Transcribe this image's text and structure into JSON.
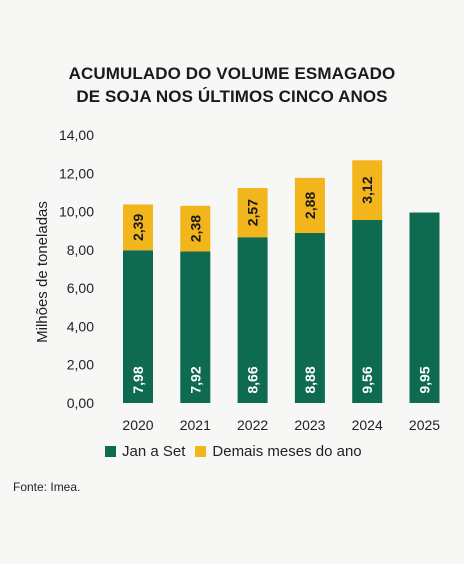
{
  "chart_data": {
    "type": "bar",
    "stacked": true,
    "title_lines": [
      "ACUMULADO DO VOLUME ESMAGADO",
      "DE SOJA NOS ÚLTIMOS CINCO ANOS"
    ],
    "ylabel": "Milhões de toneladas",
    "categories": [
      "2020",
      "2021",
      "2022",
      "2023",
      "2024",
      "2025"
    ],
    "ylim": [
      0,
      14
    ],
    "yticks": [
      "0,00",
      "2,00",
      "4,00",
      "6,00",
      "8,00",
      "10,00",
      "12,00",
      "14,00"
    ],
    "series": [
      {
        "name": "Jan a Set",
        "color": "#0e6b4f",
        "label_color": "#ffffff",
        "values": [
          7.98,
          7.92,
          8.66,
          8.88,
          9.56,
          9.95
        ],
        "labels": [
          "7,98",
          "7,92",
          "8,66",
          "8,88",
          "9,56",
          "9,95"
        ]
      },
      {
        "name": "Demais meses do ano",
        "color": "#f2b51c",
        "label_color": "#1a1a1a",
        "values": [
          2.39,
          2.38,
          2.57,
          2.88,
          3.12,
          null
        ],
        "labels": [
          "2,39",
          "2,38",
          "2,57",
          "2,88",
          "3,12",
          null
        ]
      }
    ],
    "legend_position": "bottom",
    "grid": false
  },
  "source": "Fonte: Imea."
}
